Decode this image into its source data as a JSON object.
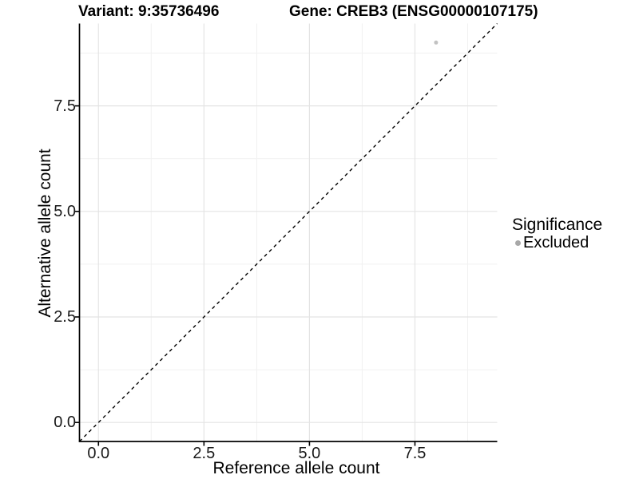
{
  "header": {
    "variant_title": "Variant: 9:35736496",
    "gene_title": "Gene: CREB3 (ENSG00000107175)"
  },
  "chart_data": {
    "type": "scatter",
    "xlabel": "Reference allele count",
    "ylabel": "Alternative allele count",
    "xlim": [
      -0.45,
      9.45
    ],
    "ylim": [
      -0.45,
      9.45
    ],
    "x_ticks": [
      0,
      2.5,
      5,
      7.5
    ],
    "y_ticks": [
      0,
      2.5,
      5,
      7.5
    ],
    "x_tick_labels": [
      "0.0",
      "2.5",
      "5.0",
      "7.5"
    ],
    "y_tick_labels": [
      "0.0",
      "2.5",
      "5.0",
      "7.5"
    ],
    "x_minor_ticks": [
      1.25,
      3.75,
      6.25,
      8.75
    ],
    "y_minor_ticks": [
      1.25,
      3.75,
      6.25,
      8.75
    ],
    "grid": "major+minor",
    "legend_position": "right",
    "series": [
      {
        "name": "Excluded",
        "marker": "circle",
        "color": "#c2c2c2",
        "points": [
          {
            "x": 8,
            "y": 9
          }
        ]
      }
    ],
    "reference_line": {
      "kind": "identity y=x",
      "linetype": "dashed",
      "color": "#000000"
    },
    "legend": {
      "title": "Significance",
      "entries": [
        {
          "label": "Excluded",
          "color": "#a8a8a8"
        }
      ]
    }
  },
  "colors": {
    "background": "#ffffff",
    "axis": "#000000",
    "grid_major": "#e4e4e4",
    "grid_minor": "#f1f1f1"
  }
}
